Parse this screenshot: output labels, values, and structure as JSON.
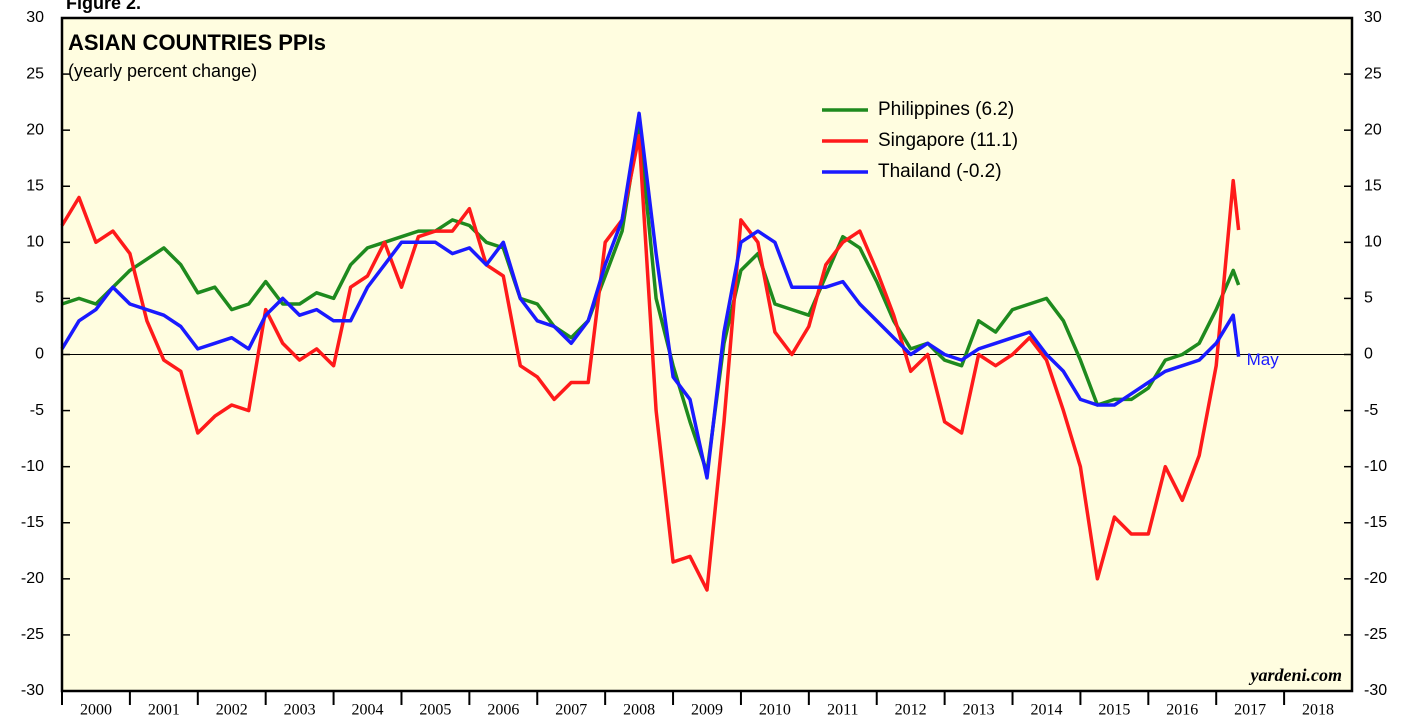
{
  "chart_data": {
    "type": "line",
    "figure_label": "Figure 2.",
    "title": "ASIAN COUNTRIES PPIs",
    "subtitle": "(yearly percent change)",
    "annotation": "May",
    "source": "yardeni.com",
    "x": [
      2000,
      2000.25,
      2000.5,
      2000.75,
      2001,
      2001.25,
      2001.5,
      2001.75,
      2002,
      2002.25,
      2002.5,
      2002.75,
      2003,
      2003.25,
      2003.5,
      2003.75,
      2004,
      2004.25,
      2004.5,
      2004.75,
      2005,
      2005.25,
      2005.5,
      2005.75,
      2006,
      2006.25,
      2006.5,
      2006.75,
      2007,
      2007.25,
      2007.5,
      2007.75,
      2008,
      2008.25,
      2008.5,
      2008.75,
      2009,
      2009.25,
      2009.5,
      2009.75,
      2010,
      2010.25,
      2010.5,
      2010.75,
      2011,
      2011.25,
      2011.5,
      2011.75,
      2012,
      2012.25,
      2012.5,
      2012.75,
      2013,
      2013.25,
      2013.5,
      2013.75,
      2014,
      2014.25,
      2014.5,
      2014.75,
      2015,
      2015.25,
      2015.5,
      2015.75,
      2016,
      2016.25,
      2016.5,
      2016.75,
      2017,
      2017.25,
      2017.33
    ],
    "series": [
      {
        "name": "Philippines (6.2)",
        "color": "#1e8a1e",
        "values": [
          4.5,
          5,
          4.5,
          6,
          7.5,
          8.5,
          9.5,
          8,
          5.5,
          6,
          4,
          4.5,
          6.5,
          4.5,
          4.5,
          5.5,
          5,
          8,
          9.5,
          10,
          10.5,
          11,
          11,
          12,
          11.5,
          10,
          9.5,
          5,
          4.5,
          2.5,
          1.5,
          3,
          7,
          11,
          20.5,
          5,
          -1,
          -6,
          -10.5,
          1,
          7.5,
          9,
          4.5,
          4,
          3.5,
          7,
          10.5,
          9.5,
          6.5,
          3,
          0.5,
          1,
          -0.5,
          -1,
          3,
          2,
          4,
          4.5,
          5,
          3,
          -0.5,
          -4.5,
          -4,
          -4,
          -3,
          -0.5,
          0,
          1,
          4,
          7.5,
          6.2
        ]
      },
      {
        "name": "Singapore (11.1)",
        "color": "#ff1a1a",
        "values": [
          11.5,
          14,
          10,
          11,
          9,
          3,
          -0.5,
          -1.5,
          -7,
          -5.5,
          -4.5,
          -5,
          4,
          1,
          -0.5,
          0.5,
          -1,
          6,
          7,
          10,
          6,
          10.5,
          11,
          11,
          13,
          8,
          7,
          -1,
          -2,
          -4,
          -2.5,
          -2.5,
          10,
          12,
          19.5,
          -5,
          -18.5,
          -18,
          -21,
          -6,
          12,
          10,
          2,
          0,
          2.5,
          8,
          10,
          11,
          7.5,
          3.5,
          -1.5,
          0,
          -6,
          -7,
          0,
          -1,
          0,
          1.5,
          -0.5,
          -5,
          -10,
          -20,
          -14.5,
          -16,
          -16,
          -10,
          -13,
          -9,
          -1,
          15.5,
          11.1
        ]
      },
      {
        "name": "Thailand (-0.2)",
        "color": "#1a1aff",
        "values": [
          0.5,
          3,
          4,
          6,
          4.5,
          4,
          3.5,
          2.5,
          0.5,
          1,
          1.5,
          0.5,
          3.5,
          5,
          3.5,
          4,
          3,
          3,
          6,
          8,
          10,
          10,
          10,
          9,
          9.5,
          8,
          10,
          5,
          3,
          2.5,
          1,
          3,
          8,
          12,
          21.5,
          9,
          -2,
          -4,
          -11,
          2,
          10,
          11,
          10,
          6,
          6,
          6,
          6.5,
          4.5,
          3,
          1.5,
          0,
          1,
          0,
          -0.5,
          0.5,
          1,
          1.5,
          2,
          0,
          -1.5,
          -4,
          -4.5,
          -4.5,
          -3.5,
          -2.5,
          -1.5,
          -1,
          -0.5,
          1,
          3.5,
          -0.2
        ]
      }
    ],
    "xlim": [
      2000,
      2019
    ],
    "xticks": [
      2000,
      2001,
      2002,
      2003,
      2004,
      2005,
      2006,
      2007,
      2008,
      2009,
      2010,
      2011,
      2012,
      2013,
      2014,
      2015,
      2016,
      2017,
      2018
    ],
    "ylim": [
      -30,
      30
    ],
    "yticks": [
      -30,
      -25,
      -20,
      -15,
      -10,
      -5,
      0,
      5,
      10,
      15,
      20,
      25,
      30
    ],
    "background": "#fffde0"
  }
}
